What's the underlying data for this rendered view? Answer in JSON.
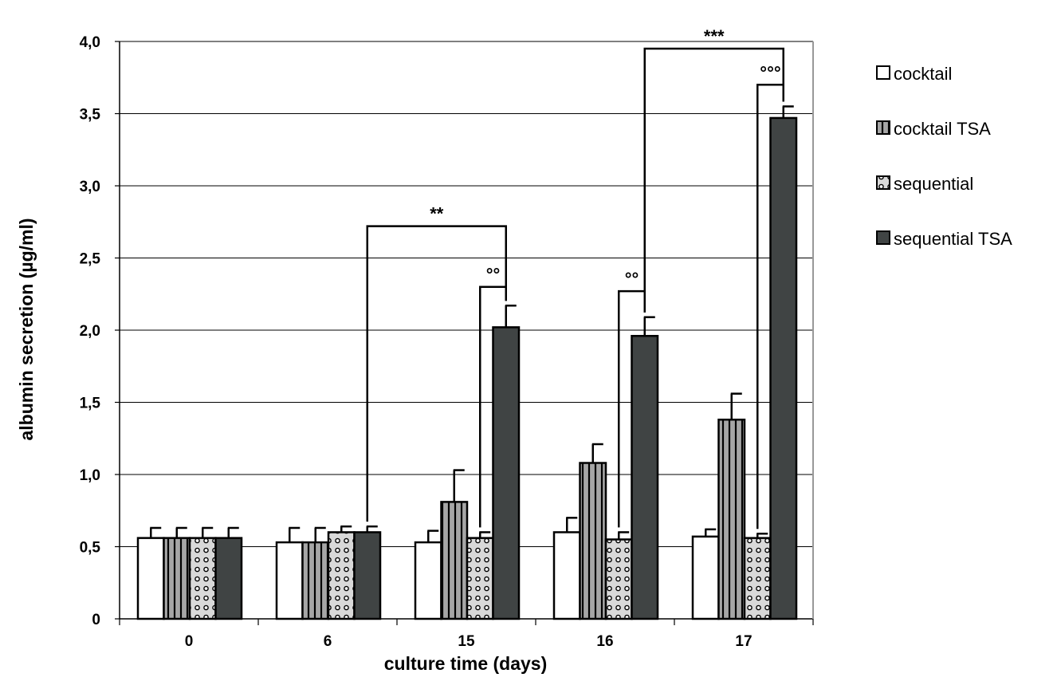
{
  "chart_data": {
    "type": "bar",
    "title": "",
    "xlabel": "culture time (days)",
    "ylabel": "albumin secretion  (µg/ml)",
    "categories": [
      "0",
      "6",
      "15",
      "16",
      "17"
    ],
    "ylim": [
      0,
      4.0
    ],
    "yticks": [
      "0",
      "0,5",
      "1,0",
      "1,5",
      "2,0",
      "2,5",
      "3,0",
      "3,5",
      "4,0"
    ],
    "grid": true,
    "legend_position": "right",
    "series": [
      {
        "name": "cocktail",
        "values": [
          0.56,
          0.53,
          0.53,
          0.6,
          0.57
        ],
        "errors": [
          0.07,
          0.1,
          0.08,
          0.1,
          0.05
        ],
        "fill": "#ffffff",
        "pattern": "none"
      },
      {
        "name": "cocktail TSA",
        "values": [
          0.56,
          0.53,
          0.81,
          1.08,
          1.38
        ],
        "errors": [
          0.07,
          0.1,
          0.22,
          0.13,
          0.18
        ],
        "fill": "#a6a6a6",
        "pattern": "vertical-stripes"
      },
      {
        "name": "sequential",
        "values": [
          0.56,
          0.6,
          0.56,
          0.55,
          0.56
        ],
        "errors": [
          0.07,
          0.04,
          0.04,
          0.05,
          0.03
        ],
        "fill": "#d9d9d9",
        "pattern": "circles"
      },
      {
        "name": "sequential TSA",
        "values": [
          0.56,
          0.6,
          2.02,
          1.96,
          3.47
        ],
        "errors": [
          0.07,
          0.04,
          0.15,
          0.13,
          0.08
        ],
        "fill": "#404444",
        "pattern": "none"
      }
    ],
    "annotations": [
      {
        "label": "**",
        "from": {
          "category": 1,
          "series": 3
        },
        "to": {
          "category": 2,
          "series": 3
        },
        "y": 2.72
      },
      {
        "label": "°°",
        "from": {
          "category": 2,
          "series": 2
        },
        "to": {
          "category": 2,
          "series": 3
        },
        "y": 2.3
      },
      {
        "label": "°°",
        "from": {
          "category": 3,
          "series": 2
        },
        "to": {
          "category": 3,
          "series": 3
        },
        "y": 2.27
      },
      {
        "label": "***",
        "from": {
          "category": 3,
          "series": 3
        },
        "to": {
          "category": 4,
          "series": 3
        },
        "y": 3.95
      },
      {
        "label": "°°°",
        "from": {
          "category": 4,
          "series": 2
        },
        "to": {
          "category": 4,
          "series": 3
        },
        "y": 3.7
      }
    ]
  }
}
